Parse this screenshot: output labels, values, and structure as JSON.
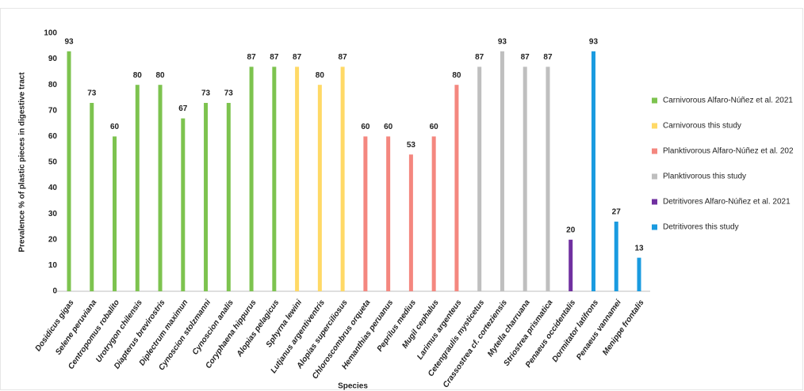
{
  "chart_data": {
    "type": "bar",
    "categories": [
      "Dosidicus gigas",
      "Selene peruviana",
      "Centropomus robalito",
      "Urotrygon chilensis",
      "Diapterus brevirostris",
      "Diplectrum maximun",
      "Cynoscion stolzmanni",
      "Cynoscion analis",
      "Coryphaena hippurus",
      "Alopias pelagicus",
      "Sphyrna lewini",
      "Lutjanus argentiventris",
      "Alopias superciliosus",
      "Chloroscombrus orqueta",
      "Hemanthias peruanus",
      "Peprilus medius",
      "Mugil cephalus",
      "Larimus argenteus",
      "Cetengraulis mysticetus",
      "Crassostrea cf. corteziensis",
      "Mytella charruana",
      "Striostrea prismatica",
      "Penaeus occidentalis",
      "Dormitator latifrons",
      "Penaeus vannamei",
      "Menippe frontalis"
    ],
    "series": [
      {
        "name": "Carnivorous Alfaro-Núñez et al. 2021",
        "color": "#7dc34f",
        "values": [
          93,
          73,
          60,
          80,
          80,
          67,
          73,
          73,
          87,
          87,
          null,
          null,
          null,
          null,
          null,
          null,
          null,
          null,
          null,
          null,
          null,
          null,
          null,
          null,
          null,
          null
        ]
      },
      {
        "name": "Carnivorous this study",
        "color": "#ffd966",
        "values": [
          null,
          null,
          null,
          null,
          null,
          null,
          null,
          null,
          null,
          null,
          87,
          80,
          87,
          null,
          null,
          null,
          null,
          null,
          null,
          null,
          null,
          null,
          null,
          null,
          null,
          null
        ]
      },
      {
        "name": "Planktivorous Alfaro-Núñez et al. 202",
        "color": "#f4877f",
        "values": [
          null,
          null,
          null,
          null,
          null,
          null,
          null,
          null,
          null,
          null,
          null,
          null,
          null,
          60,
          60,
          53,
          60,
          80,
          null,
          null,
          null,
          null,
          null,
          null,
          null,
          null
        ]
      },
      {
        "name": "Planktivorous this study",
        "color": "#bfbfbf",
        "values": [
          null,
          null,
          null,
          null,
          null,
          null,
          null,
          null,
          null,
          null,
          null,
          null,
          null,
          null,
          null,
          null,
          null,
          null,
          87,
          93,
          87,
          87,
          null,
          null,
          null,
          null
        ]
      },
      {
        "name": "Detritivores Alfaro-Núñez et al. 2021",
        "color": "#7030a0",
        "values": [
          null,
          null,
          null,
          null,
          null,
          null,
          null,
          null,
          null,
          null,
          null,
          null,
          null,
          null,
          null,
          null,
          null,
          null,
          null,
          null,
          null,
          null,
          20,
          null,
          null,
          null
        ]
      },
      {
        "name": "Detritivores  this study",
        "color": "#1a9be0",
        "values": [
          null,
          null,
          null,
          null,
          null,
          null,
          null,
          null,
          null,
          null,
          null,
          null,
          null,
          null,
          null,
          null,
          null,
          null,
          null,
          null,
          null,
          null,
          null,
          93,
          27,
          13
        ]
      }
    ],
    "y_label": "Prevalence % of plastic pieces in digestive tract",
    "x_label": "Species",
    "ylim": [
      0,
      100
    ],
    "yticks": [
      0,
      10,
      20,
      30,
      40,
      50,
      60,
      70,
      80,
      90,
      100
    ],
    "grid": false,
    "legend": "right"
  }
}
